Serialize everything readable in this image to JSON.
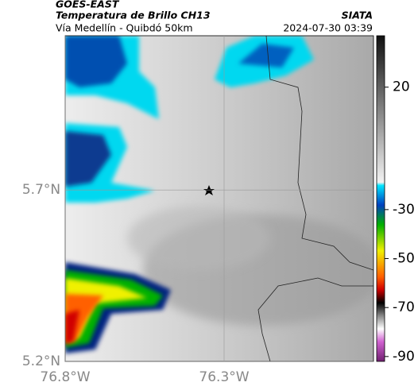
{
  "header": {
    "satellite": "GOES-EAST",
    "product": "Temperatura de Brillo CH13",
    "region": "Vía Medellín - Quibdó 50km",
    "source": "SIATA",
    "datetime": "2024-07-30 03:39"
  },
  "map": {
    "xlim": [
      -76.8,
      -75.83
    ],
    "ylim": [
      5.2,
      6.15
    ],
    "xticks": [
      {
        "value": -76.8,
        "label": "76.8°W"
      },
      {
        "value": -76.3,
        "label": "76.3°W"
      }
    ],
    "yticks": [
      {
        "value": 5.2,
        "label": "5.2°N"
      },
      {
        "value": 5.7,
        "label": "5.7°N"
      }
    ]
  },
  "colorbar": {
    "lim": [
      -92,
      41
    ],
    "ticks": [
      20,
      -30,
      -50,
      -70,
      -90
    ]
  }
}
